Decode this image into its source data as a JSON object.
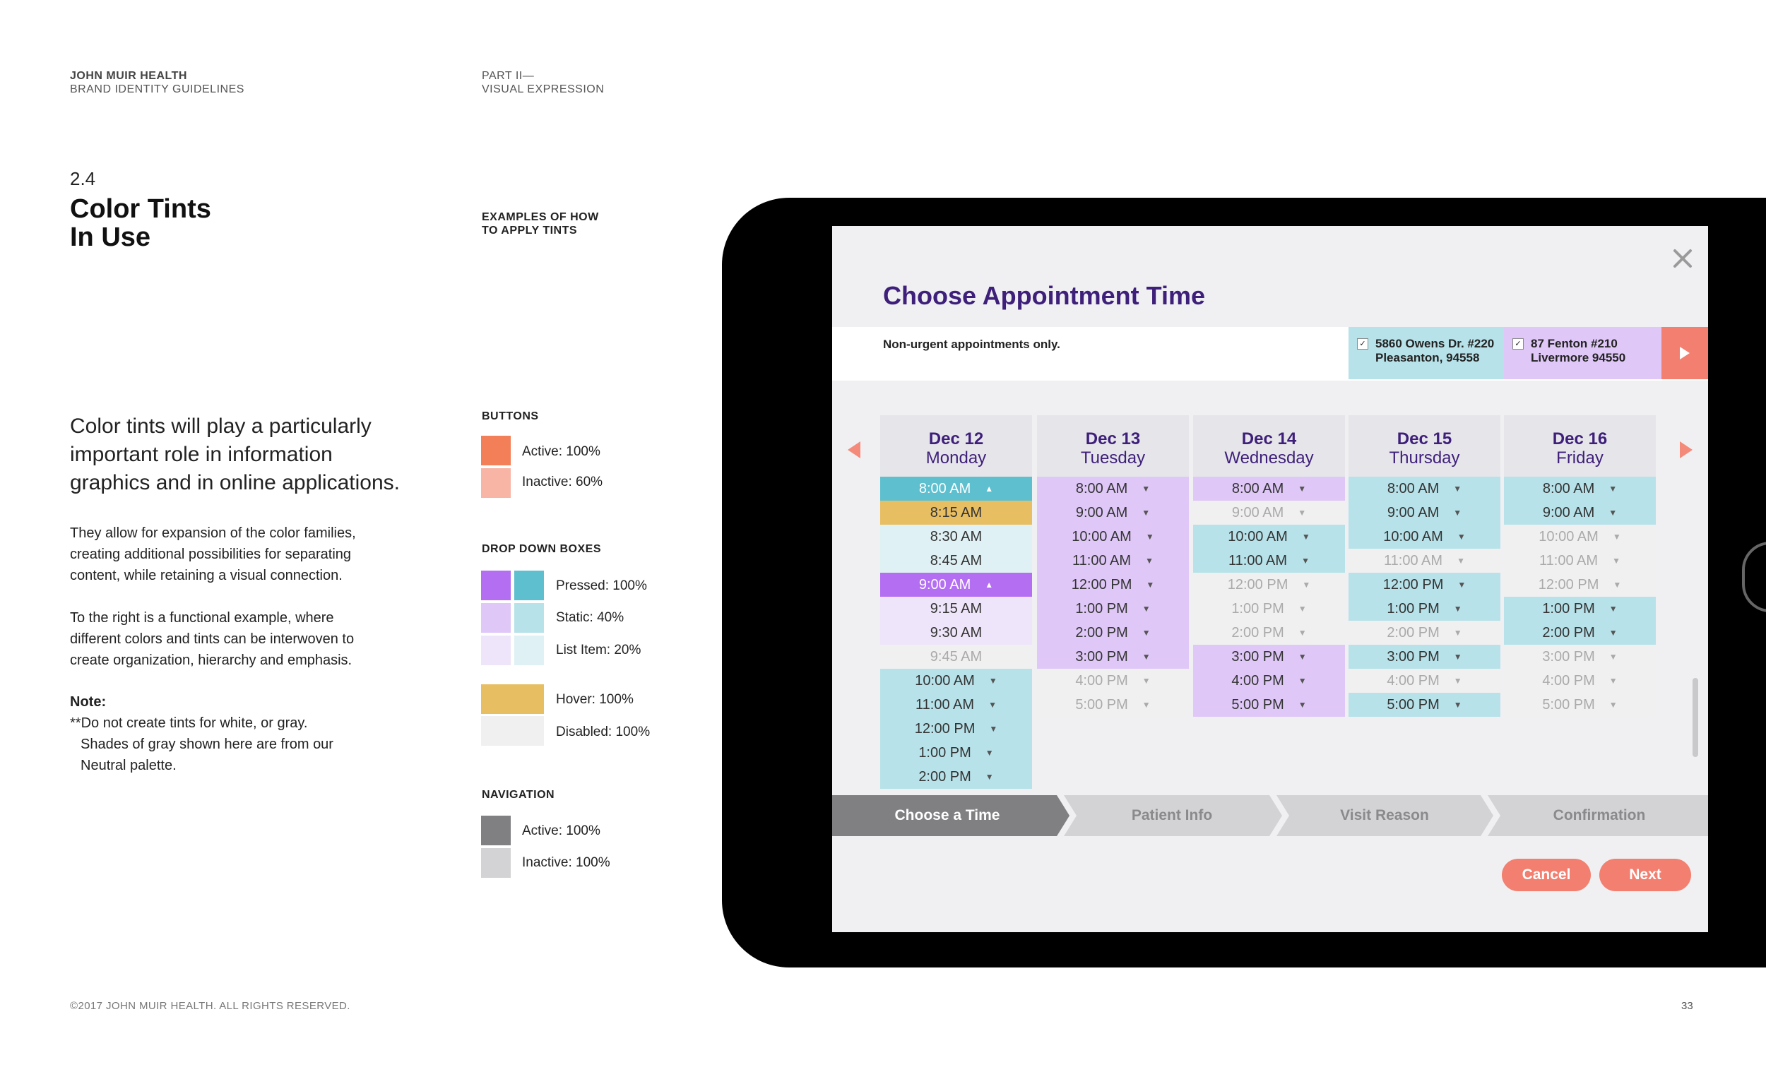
{
  "header": {
    "org": "JOHN MUIR HEALTH",
    "doc": "BRAND IDENTITY GUIDELINES",
    "part": "PART II—",
    "part_title": "VISUAL EXPRESSION"
  },
  "section": {
    "number": "2.4",
    "title_line1": "Color Tints",
    "title_line2": "In Use",
    "examples_line1": "EXAMPLES OF HOW",
    "examples_line2": "TO APPLY TINTS"
  },
  "body": {
    "lead_1": "Color tints will play a particularly",
    "lead_2": "important role in information",
    "lead_3": "graphics and in online applications.",
    "p1_1": "They allow for expansion of the color families,",
    "p1_2": "creating additional possibilities for separating",
    "p1_3": "content, while retaining a visual connection.",
    "p2_1": "To the right is a functional example, where",
    "p2_2": "different colors and tints can be interwoven to",
    "p2_3": "create organization, hierarchy and emphasis.",
    "note_label": "Note:",
    "note_1": "**Do not create tints for white, or gray.",
    "note_2": "Shades of gray shown here are from our",
    "note_3": "Neutral palette."
  },
  "legend": {
    "buttons_title": "BUTTONS",
    "btn_active": "Active: 100%",
    "btn_inactive": "Inactive: 60%",
    "dropdown_title": "DROP DOWN BOXES",
    "dd_pressed": "Pressed: 100%",
    "dd_static": "Static: 40%",
    "dd_list": "List Item: 20%",
    "dd_hover": "Hover: 100%",
    "dd_disabled": "Disabled: 100%",
    "nav_title": "NAVIGATION",
    "nav_active": "Active: 100%",
    "nav_inactive": "Inactive: 100%"
  },
  "colors": {
    "orange": "#f27f58",
    "orange_60": "#f8b5a6",
    "purple": "#b36ef2",
    "purple_40": "#dfc8f7",
    "purple_20": "#efe5fa",
    "teal": "#5ebfcf",
    "teal_40": "#b7e2e9",
    "teal_20": "#dff1f4",
    "gold": "#e8be63",
    "gray_light": "#f0f0f0",
    "nav_active": "#808083",
    "nav_inactive": "#d3d3d5",
    "title_purple": "#3e1f7a"
  },
  "app": {
    "title": "Choose Appointment Time",
    "close_icon": "close-icon",
    "note": "Non-urgent appointments only.",
    "loc1_line1": "5860 Owens Dr. #220",
    "loc1_line2": "Pleasanton, 94558",
    "loc2_line1": "87 Fenton #210",
    "loc2_line2": "Livermore 94550",
    "days": [
      {
        "date": "Dec 12",
        "day": "Monday"
      },
      {
        "date": "Dec 13",
        "day": "Tuesday"
      },
      {
        "date": "Dec 14",
        "day": "Wednesday"
      },
      {
        "date": "Dec 15",
        "day": "Thursday"
      },
      {
        "date": "Dec 16",
        "day": "Friday"
      }
    ],
    "col1": [
      "8:00 AM",
      "8:15 AM",
      "8:30 AM",
      "8:45 AM",
      "9:00 AM",
      "9:15 AM",
      "9:30 AM",
      "9:45 AM",
      "10:00 AM",
      "11:00 AM",
      "12:00 PM",
      "1:00 PM",
      "2:00 PM"
    ],
    "col2": [
      "8:00 AM",
      "9:00 AM",
      "10:00 AM",
      "11:00 AM",
      "12:00 PM",
      "1:00 PM",
      "2:00 PM",
      "3:00 PM",
      "4:00 PM",
      "5:00 PM"
    ],
    "col3": [
      "8:00 AM",
      "9:00 AM",
      "10:00 AM",
      "11:00 AM",
      "12:00 PM",
      "1:00 PM",
      "2:00 PM",
      "3:00 PM",
      "4:00 PM",
      "5:00 PM"
    ],
    "col4": [
      "8:00 AM",
      "9:00 AM",
      "10:00 AM",
      "11:00 AM",
      "12:00 PM",
      "1:00 PM",
      "2:00 PM",
      "3:00 PM",
      "4:00 PM",
      "5:00 PM"
    ],
    "col5": [
      "8:00 AM",
      "9:00 AM",
      "10:00 AM",
      "11:00 AM",
      "12:00 PM",
      "1:00 PM",
      "2:00 PM",
      "3:00 PM",
      "4:00 PM",
      "5:00 PM"
    ],
    "steps": [
      "Choose a Time",
      "Patient Info",
      "Visit Reason",
      "Confirmation"
    ],
    "cancel": "Cancel",
    "next": "Next"
  },
  "footer": {
    "copyright": "©2017 JOHN MUIR HEALTH. ALL RIGHTS RESERVED.",
    "page": "33"
  }
}
